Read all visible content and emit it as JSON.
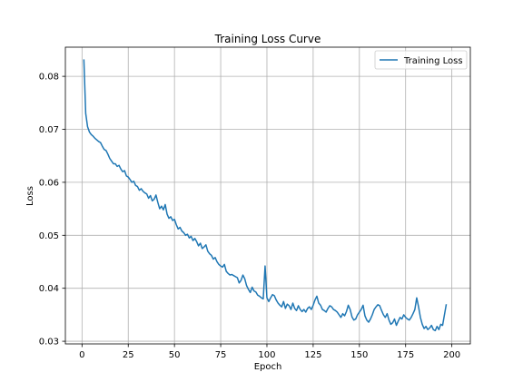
{
  "chart_data": {
    "type": "line",
    "title": "Training Loss Curve",
    "xlabel": "Epoch",
    "ylabel": "Loss",
    "xlim": [
      -9,
      210
    ],
    "ylim": [
      0.0295,
      0.0855
    ],
    "xticks": [
      0,
      25,
      50,
      75,
      100,
      125,
      150,
      175,
      200
    ],
    "yticks": [
      0.03,
      0.04,
      0.05,
      0.06,
      0.07,
      0.08
    ],
    "xtick_labels": [
      "0",
      "25",
      "50",
      "75",
      "100",
      "125",
      "150",
      "175",
      "200"
    ],
    "ytick_labels": [
      "0.03",
      "0.04",
      "0.05",
      "0.06",
      "0.07",
      "0.08"
    ],
    "grid": true,
    "legend": {
      "position": "top-right",
      "entries": [
        "Training Loss"
      ]
    },
    "series": [
      {
        "name": "Training Loss",
        "color": "#1f77b4",
        "x_start": 1,
        "x_step": 1,
        "values": [
          0.0832,
          0.073,
          0.0705,
          0.0695,
          0.069,
          0.0687,
          0.0683,
          0.068,
          0.0677,
          0.0675,
          0.0668,
          0.0662,
          0.066,
          0.0653,
          0.0645,
          0.064,
          0.0635,
          0.0635,
          0.063,
          0.0632,
          0.0625,
          0.062,
          0.0622,
          0.0612,
          0.061,
          0.0605,
          0.06,
          0.0602,
          0.0594,
          0.0592,
          0.0585,
          0.0588,
          0.0583,
          0.058,
          0.0578,
          0.057,
          0.0575,
          0.0565,
          0.0568,
          0.0576,
          0.0562,
          0.055,
          0.0555,
          0.0548,
          0.0558,
          0.054,
          0.0532,
          0.0535,
          0.0528,
          0.053,
          0.052,
          0.0512,
          0.0515,
          0.0508,
          0.0505,
          0.05,
          0.0502,
          0.0495,
          0.0498,
          0.049,
          0.0494,
          0.0488,
          0.048,
          0.0485,
          0.0475,
          0.0478,
          0.0482,
          0.047,
          0.0465,
          0.0462,
          0.0455,
          0.0458,
          0.045,
          0.0445,
          0.0442,
          0.044,
          0.0445,
          0.0432,
          0.0428,
          0.0425,
          0.0426,
          0.0424,
          0.0422,
          0.042,
          0.041,
          0.0415,
          0.0425,
          0.0418,
          0.0405,
          0.0398,
          0.0392,
          0.0402,
          0.0395,
          0.0393,
          0.0387,
          0.0385,
          0.0382,
          0.038,
          0.0442,
          0.0382,
          0.0375,
          0.0382,
          0.0388,
          0.0386,
          0.0378,
          0.0372,
          0.0368,
          0.0365,
          0.0375,
          0.0362,
          0.037,
          0.0367,
          0.036,
          0.0372,
          0.0362,
          0.0358,
          0.0367,
          0.036,
          0.0356,
          0.036,
          0.0355,
          0.0362,
          0.0365,
          0.036,
          0.0368,
          0.0378,
          0.0385,
          0.0372,
          0.0368,
          0.036,
          0.0358,
          0.0355,
          0.0362,
          0.0367,
          0.0365,
          0.036,
          0.0358,
          0.0355,
          0.035,
          0.0345,
          0.0352,
          0.0348,
          0.0356,
          0.0368,
          0.036,
          0.0346,
          0.034,
          0.0342,
          0.035,
          0.0355,
          0.036,
          0.0368,
          0.0348,
          0.034,
          0.0336,
          0.0342,
          0.035,
          0.036,
          0.0365,
          0.0369,
          0.0367,
          0.0358,
          0.035,
          0.0345,
          0.0352,
          0.034,
          0.0332,
          0.0335,
          0.0342,
          0.033,
          0.0338,
          0.0345,
          0.0342,
          0.035,
          0.0345,
          0.0342,
          0.034,
          0.0345,
          0.0352,
          0.036,
          0.0382,
          0.0365,
          0.0345,
          0.0332,
          0.0324,
          0.0328,
          0.0322,
          0.0325,
          0.033,
          0.0322,
          0.032,
          0.0328,
          0.0322,
          0.0332,
          0.033,
          0.035,
          0.037
        ]
      }
    ]
  }
}
